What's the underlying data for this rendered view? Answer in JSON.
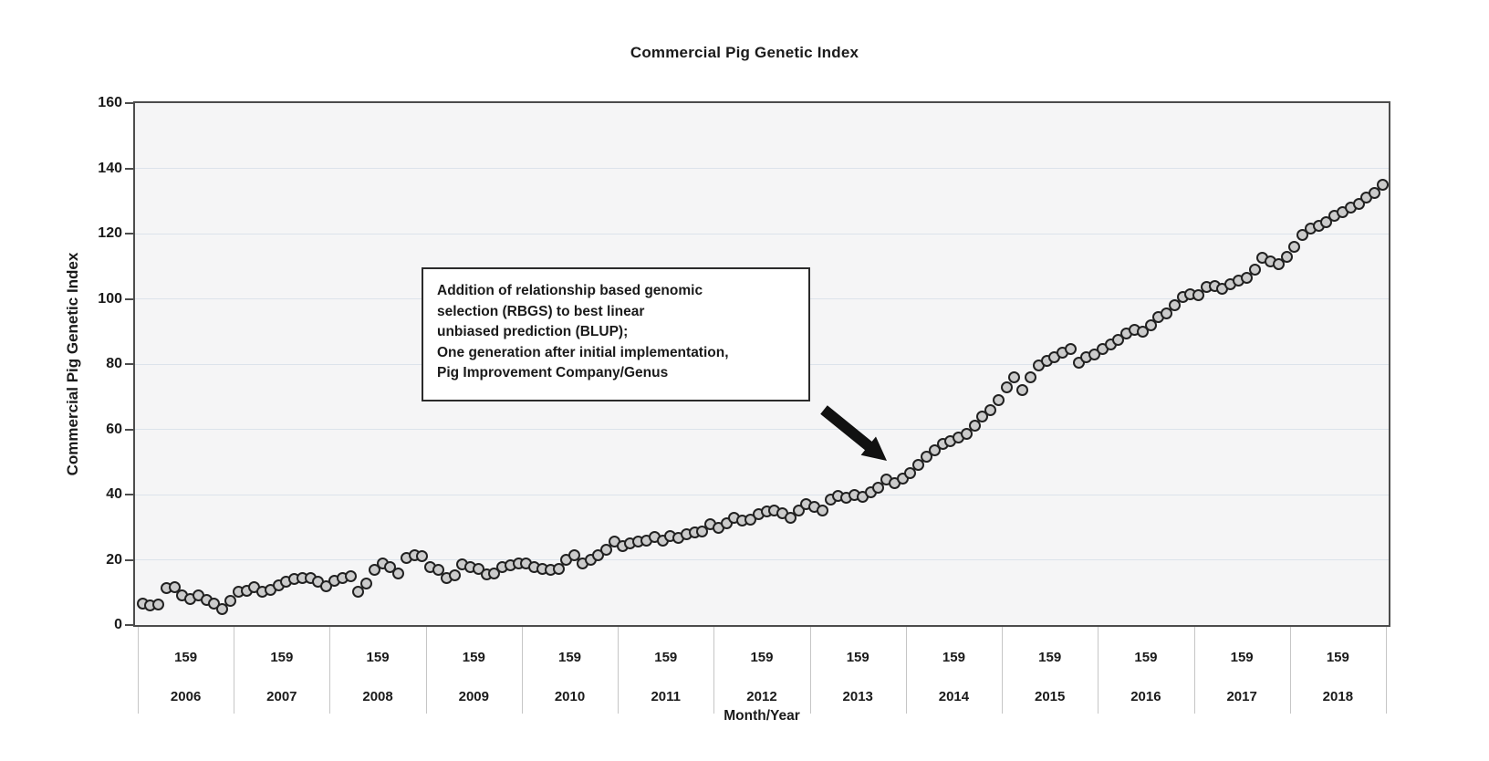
{
  "chart_data": {
    "type": "scatter",
    "title": "Commercial Pig Genetic Index",
    "xlabel": "Month/Year",
    "ylabel": "Commercial Pig Genetic Index",
    "ylim": [
      0,
      160
    ],
    "y_ticks": [
      0,
      20,
      40,
      60,
      80,
      100,
      120,
      140,
      160
    ],
    "y_gridlines": [
      20,
      40,
      60,
      80,
      100,
      120,
      140
    ],
    "grid": "horizontal-only",
    "legend": "none",
    "marker": "gray-circle",
    "x_axis": {
      "tier1_label_per_year": "159",
      "years": [
        "2006",
        "2007",
        "2008",
        "2009",
        "2010",
        "2011",
        "2012",
        "2013",
        "2014",
        "2015",
        "2016",
        "2017",
        "2018"
      ]
    },
    "series": [
      {
        "name": "Commercial Pig Genetic Index (monthly)",
        "data": [
          {
            "year": "2006",
            "values": [
              6.7,
              5.9,
              6.4,
              11.2,
              11.7,
              9.0,
              8.1,
              9.2,
              7.8,
              6.7,
              4.8,
              7.3
            ]
          },
          {
            "year": "2007",
            "values": [
              10.1,
              10.6,
              11.5,
              10.1,
              10.9,
              12.3,
              13.4,
              14.0,
              14.5,
              14.3,
              13.4,
              12.0
            ]
          },
          {
            "year": "2008",
            "values": [
              13.7,
              14.3,
              15.1,
              10.3,
              12.6,
              16.8,
              19.0,
              17.9,
              15.9,
              20.5,
              21.5,
              21.0
            ]
          },
          {
            "year": "2009",
            "values": [
              17.7,
              16.8,
              14.5,
              15.2,
              18.7,
              17.9,
              17.3,
              15.4,
              15.9,
              17.7,
              18.2,
              19.0
            ]
          },
          {
            "year": "2010",
            "values": [
              19.0,
              17.9,
              17.1,
              16.8,
              17.1,
              19.9,
              21.5,
              19.0,
              20.1,
              21.3,
              23.2,
              25.7
            ]
          },
          {
            "year": "2011",
            "values": [
              24.3,
              24.9,
              25.5,
              26.0,
              26.9,
              26.0,
              27.4,
              26.6,
              27.7,
              28.3,
              28.8,
              30.8
            ]
          },
          {
            "year": "2012",
            "values": [
              29.9,
              31.3,
              33.0,
              31.9,
              32.4,
              34.1,
              34.7,
              35.2,
              34.4,
              33.0,
              35.0,
              37.2
            ]
          },
          {
            "year": "2013",
            "values": [
              36.1,
              35.0,
              38.6,
              39.7,
              38.9,
              40.0,
              39.4,
              40.8,
              42.2,
              44.5,
              43.6,
              45.0
            ]
          },
          {
            "year": "2014",
            "values": [
              46.5,
              49.0,
              51.5,
              53.5,
              55.5,
              56.5,
              57.5,
              58.5,
              61.0,
              64.0,
              66.0,
              69.0
            ]
          },
          {
            "year": "2015",
            "values": [
              73.0,
              76.0,
              72.0,
              76.0,
              79.5,
              81.0,
              82.0,
              83.5,
              84.5,
              80.5,
              82.0,
              83.0
            ]
          },
          {
            "year": "2016",
            "values": [
              84.5,
              86.0,
              87.5,
              89.5,
              90.5,
              89.8,
              92.0,
              94.5,
              95.5,
              98.0,
              100.5,
              101.5
            ]
          },
          {
            "year": "2017",
            "values": [
              101.0,
              103.5,
              104.0,
              103.0,
              104.5,
              105.5,
              106.5,
              109.0,
              112.5,
              111.5,
              110.5,
              113.0
            ]
          },
          {
            "year": "2018",
            "values": [
              116.0,
              119.5,
              121.5,
              122.5,
              123.5,
              125.5,
              126.5,
              128.0,
              129.0,
              131.0,
              132.5,
              135.0
            ]
          }
        ]
      }
    ],
    "annotation": {
      "lines": [
        "Addition of relationship based genomic",
        "selection (RBGS) to best linear",
        "unbiased prediction (BLUP);",
        "One generation after initial implementation,",
        "Pig Improvement Company/Genus"
      ],
      "arrow_points_to": "late-2013 inflection point (index ~45-50)"
    }
  },
  "colors": {
    "plot_background": "#f5f5f6",
    "gridline": "#dce3eb",
    "axis": "#4c4c4c",
    "marker_fill": "#cbcbcb",
    "marker_stroke": "#212121",
    "arrow": "#111111",
    "text": "#1a1a1a"
  }
}
